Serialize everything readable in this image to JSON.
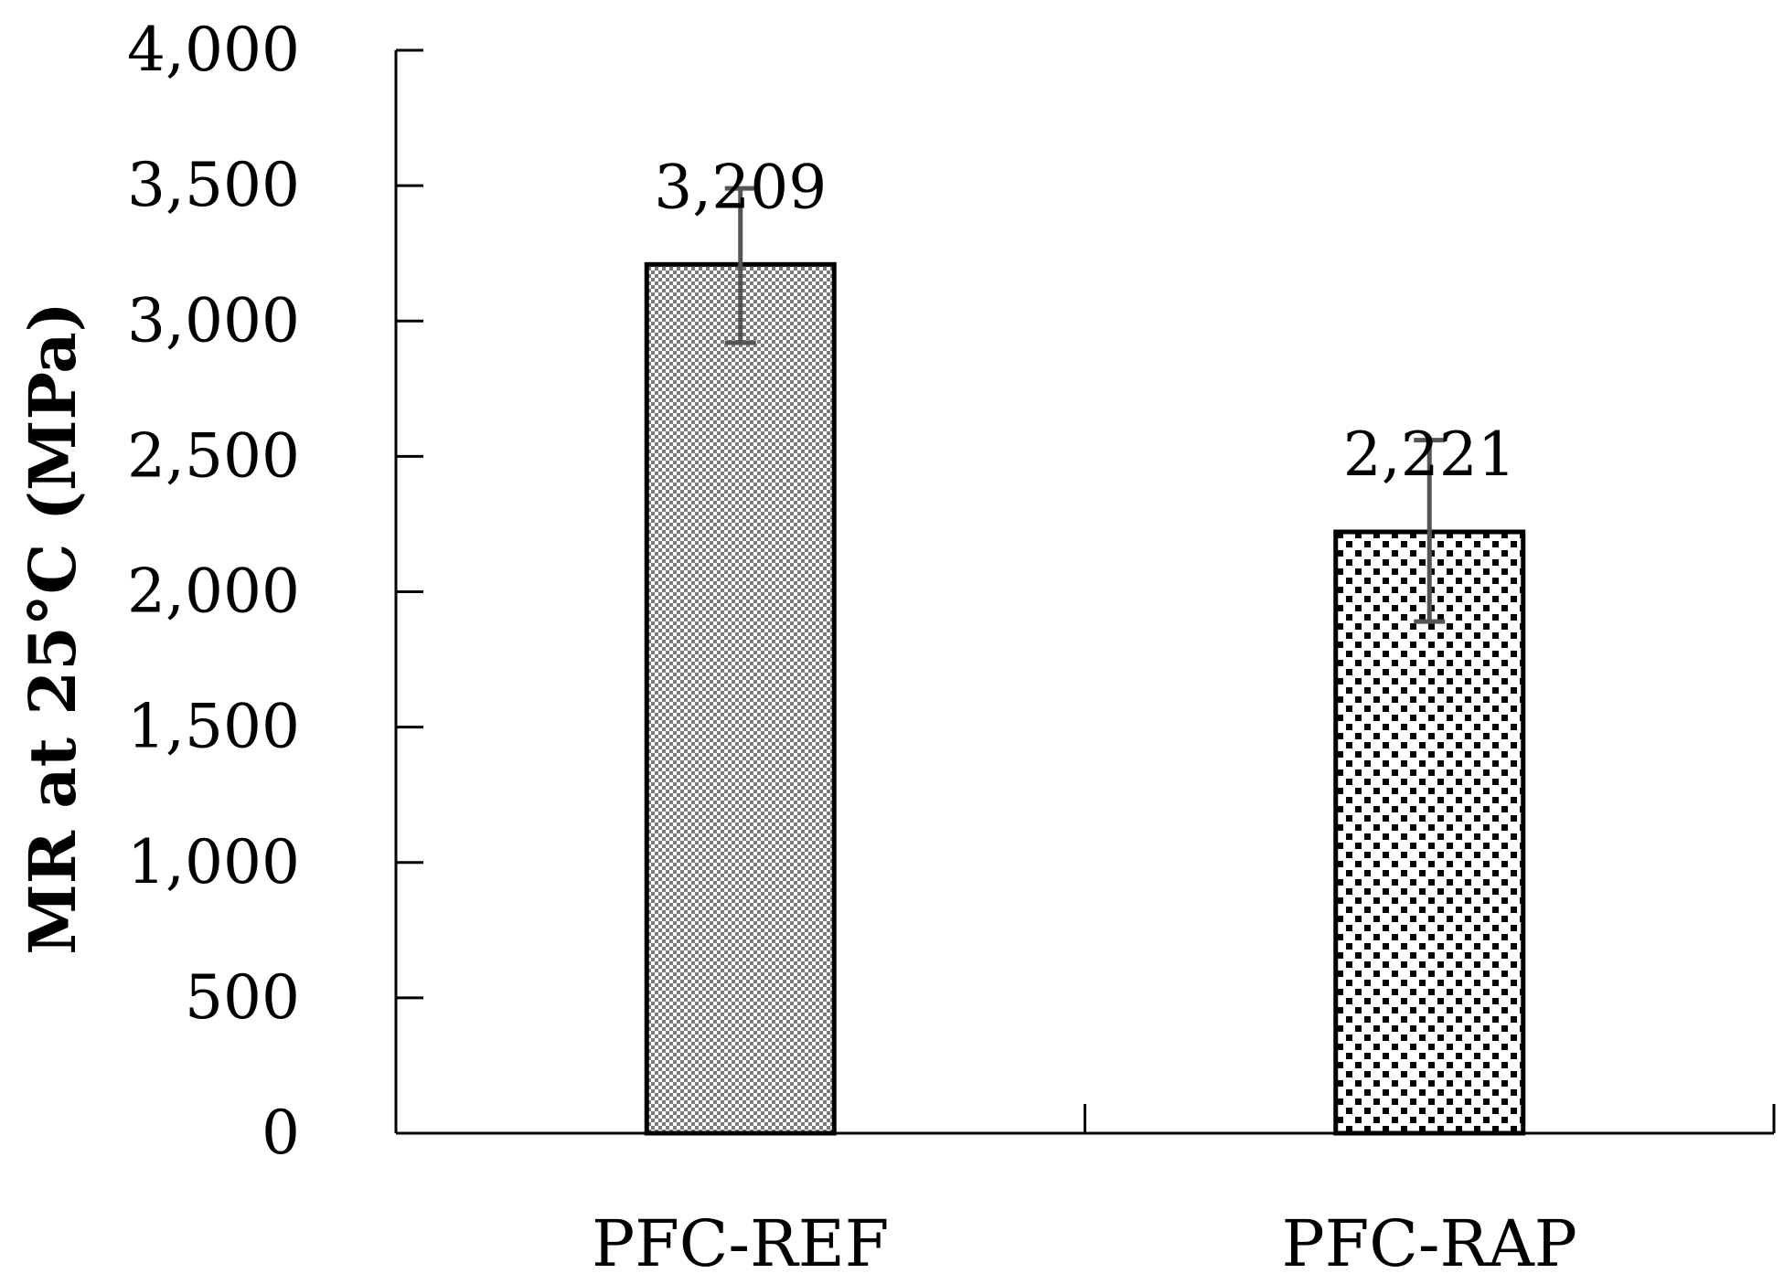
{
  "chart_data": {
    "type": "bar",
    "title": "",
    "xlabel": "",
    "ylabel": "MR at  25°C (MPa)",
    "categories": [
      "PFC-REF",
      "PFC-RAP"
    ],
    "values": [
      3209,
      2221
    ],
    "data_labels": [
      "3,209",
      "2,221"
    ],
    "error_bars": [
      {
        "low": 2920,
        "high": 3490
      },
      {
        "low": 1890,
        "high": 2560
      }
    ],
    "ylim": [
      0,
      4000
    ],
    "yticks": [
      0,
      500,
      1000,
      1500,
      2000,
      2500,
      3000,
      3500,
      4000
    ],
    "ytick_labels": [
      "0",
      "500",
      "1,000",
      "1,500",
      "2,000",
      "2,500",
      "3,000",
      "3,500",
      "4,000"
    ],
    "grid": false,
    "legend": "none",
    "bar_patterns": [
      "fine-gray-checker",
      "black-dots"
    ],
    "colors": {
      "axis": "#000000",
      "error_bar": "#555555",
      "bar_outline": "#000000",
      "pattern_gray": "#7a7a7a"
    }
  }
}
